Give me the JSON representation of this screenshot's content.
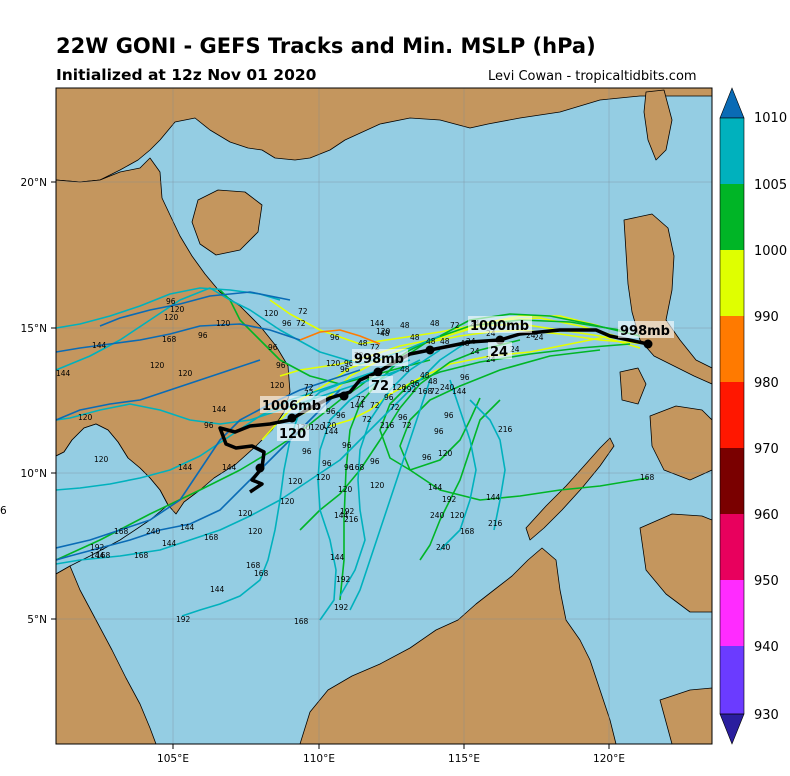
{
  "header": {
    "title": "22W GONI - GEFS Tracks and Min. MSLP (hPa)",
    "subtitle": "Initialized at 12z Nov 01 2020",
    "credit": "Levi Cowan - tropicaltidbits.com"
  },
  "map": {
    "lon_ticks": [
      "105°E",
      "110°E",
      "115°E",
      "120°E"
    ],
    "lat_ticks": [
      "20°N",
      "15°N",
      "10°N",
      "5°N"
    ],
    "ocean_color": "#94cde3",
    "land_color": "#c4965e",
    "mean_track_color": "#000000"
  },
  "colorbar": {
    "labels": [
      "1010",
      "1005",
      "1000",
      "990",
      "980",
      "970",
      "960",
      "950",
      "940",
      "930"
    ],
    "colors": [
      "#0a6bb5",
      "#00b1bd",
      "#00b526",
      "#dfff00",
      "#ff7a00",
      "#ff1700",
      "#7a0000",
      "#e8005d",
      "#ff2bff",
      "#6b3bff",
      "#2a1e9e"
    ]
  },
  "mean_track_labels": [
    {
      "pressure": "998mb",
      "hour": ""
    },
    {
      "pressure": "1000mb",
      "hour": "24"
    },
    {
      "pressure": "998mb",
      "hour": "72"
    },
    {
      "pressure": "1006mb",
      "hour": "120"
    }
  ],
  "edge_text": {
    "left": "6"
  }
}
